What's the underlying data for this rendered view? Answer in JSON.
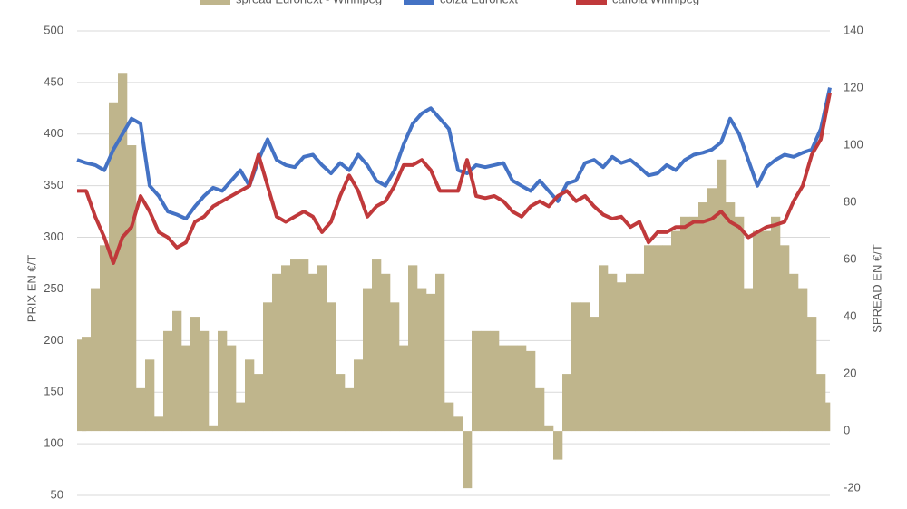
{
  "chart_data": {
    "type": "bar-line",
    "y_label": "PRIX EN €/T",
    "y2_label": "SPREAD EN €/T",
    "ylim": [
      50,
      500
    ],
    "yticks": [
      50,
      100,
      150,
      200,
      250,
      300,
      350,
      400,
      450,
      500
    ],
    "y2lim": [
      -22.5,
      140
    ],
    "y2ticks": [
      -20,
      0,
      20,
      40,
      60,
      80,
      100,
      120,
      140
    ],
    "grid": true,
    "series": [
      {
        "name": "spread Euronext - Winnipeg",
        "color": "#bfb58c",
        "kind": "bar",
        "axis": "y2",
        "values": [
          32,
          33,
          50,
          65,
          115,
          125,
          100,
          15,
          25,
          5,
          35,
          42,
          30,
          40,
          35,
          2,
          35,
          30,
          10,
          25,
          20,
          45,
          55,
          58,
          60,
          60,
          55,
          58,
          45,
          20,
          15,
          25,
          50,
          60,
          55,
          45,
          30,
          58,
          50,
          48,
          55,
          10,
          5,
          -20,
          35,
          35,
          35,
          30,
          30,
          30,
          28,
          15,
          2,
          -10,
          20,
          45,
          45,
          40,
          58,
          55,
          52,
          55,
          55,
          65,
          65,
          65,
          70,
          75,
          75,
          80,
          85,
          95,
          80,
          75,
          50,
          70,
          70,
          75,
          65,
          55,
          50,
          40,
          20,
          10
        ]
      },
      {
        "name": "colza Euronext",
        "color": "#4472c4",
        "kind": "line",
        "values": [
          375,
          372,
          370,
          365,
          385,
          400,
          415,
          410,
          350,
          340,
          325,
          322,
          318,
          330,
          340,
          348,
          345,
          355,
          365,
          350,
          375,
          395,
          375,
          370,
          368,
          378,
          380,
          370,
          362,
          372,
          365,
          380,
          370,
          355,
          350,
          365,
          390,
          410,
          420,
          425,
          415,
          405,
          365,
          362,
          370,
          368,
          370,
          372,
          355,
          350,
          345,
          355,
          345,
          335,
          352,
          355,
          372,
          375,
          368,
          378,
          372,
          375,
          368,
          360,
          362,
          370,
          365,
          375,
          380,
          382,
          385,
          392,
          415,
          400,
          375,
          350,
          368,
          375,
          380,
          378,
          382,
          385,
          405,
          445
        ]
      },
      {
        "name": "canola Winnipeg",
        "color": "#c0393b",
        "kind": "line",
        "values": [
          345,
          345,
          320,
          300,
          275,
          300,
          310,
          340,
          325,
          305,
          300,
          290,
          295,
          315,
          320,
          330,
          335,
          340,
          345,
          350,
          380,
          350,
          320,
          315,
          320,
          325,
          320,
          305,
          315,
          340,
          360,
          345,
          320,
          330,
          335,
          350,
          370,
          370,
          375,
          365,
          345,
          345,
          345,
          375,
          340,
          338,
          340,
          335,
          325,
          320,
          330,
          335,
          330,
          340,
          345,
          335,
          340,
          330,
          322,
          318,
          320,
          310,
          315,
          295,
          305,
          305,
          310,
          310,
          315,
          315,
          318,
          325,
          315,
          310,
          300,
          305,
          310,
          312,
          315,
          335,
          350,
          380,
          395,
          440
        ]
      }
    ]
  }
}
